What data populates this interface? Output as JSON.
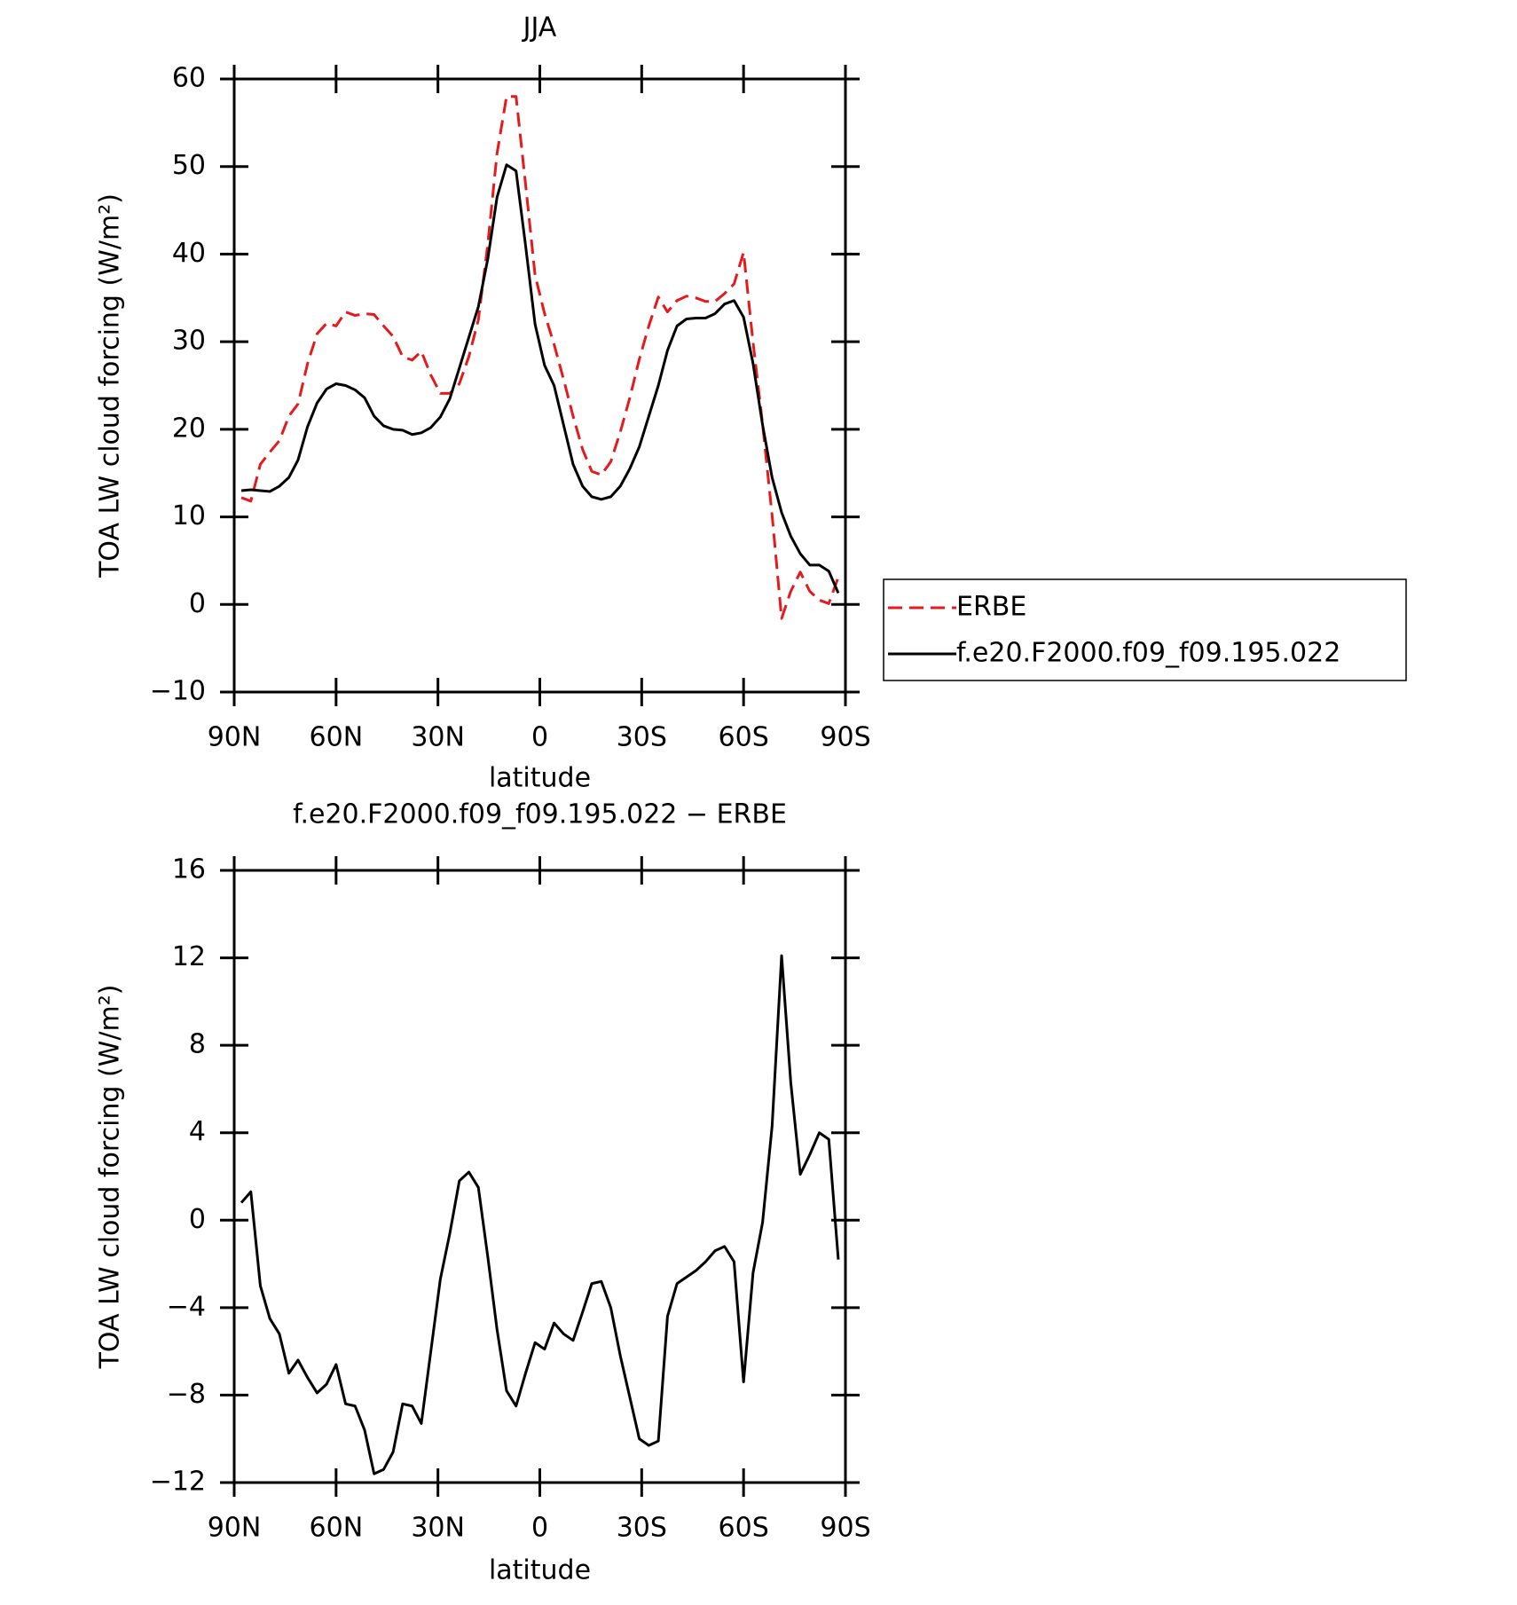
{
  "chart_data": [
    {
      "type": "line",
      "title": "JJA",
      "xlabel": "latitude",
      "ylabel": "TOA LW cloud forcing (W/m²)",
      "xlim": [
        90,
        -90
      ],
      "xticks": [
        {
          "value": 90,
          "label": "90N"
        },
        {
          "value": 60,
          "label": "60N"
        },
        {
          "value": 30,
          "label": "30N"
        },
        0,
        {
          "value": -30,
          "label": "30S"
        },
        {
          "value": -60,
          "label": "60S"
        },
        {
          "value": -90,
          "label": "90S"
        }
      ],
      "ylim": [
        -10,
        60
      ],
      "yticks": [
        {
          "value": -10,
          "label": "−10"
        },
        0,
        10,
        20,
        30,
        40,
        50,
        60
      ],
      "legend": "right",
      "x": [
        87.9,
        85.1,
        82.3,
        79.5,
        76.7,
        73.9,
        71.2,
        68.4,
        65.6,
        62.8,
        60.0,
        57.2,
        54.4,
        51.6,
        48.8,
        46.0,
        43.2,
        40.4,
        37.6,
        34.9,
        32.1,
        29.3,
        26.5,
        23.7,
        20.9,
        18.1,
        15.3,
        12.6,
        9.8,
        7.0,
        4.2,
        1.4,
        -1.4,
        -4.2,
        -7.0,
        -9.8,
        -12.6,
        -15.3,
        -18.1,
        -20.9,
        -23.7,
        -26.5,
        -29.3,
        -32.1,
        -34.9,
        -37.6,
        -40.4,
        -43.2,
        -46.0,
        -48.8,
        -51.6,
        -54.4,
        -57.2,
        -60.0,
        -62.8,
        -65.6,
        -68.4,
        -71.2,
        -73.9,
        -76.7,
        -79.5,
        -82.3,
        -85.1,
        -87.9
      ],
      "series": [
        {
          "name": "ERBE",
          "color": "#e41a1c",
          "linestyle": "dashed",
          "values": [
            12.2,
            11.8,
            16,
            17.4,
            18.7,
            21.5,
            22.9,
            27.5,
            30.9,
            32.1,
            31.8,
            33.4,
            33,
            33.2,
            33.1,
            31.8,
            30.6,
            28.3,
            27.9,
            28.9,
            26.2,
            24.1,
            24.1,
            25.2,
            28.3,
            32.5,
            41.2,
            51.5,
            58,
            58,
            48,
            37.6,
            33.2,
            29.7,
            25.7,
            21.5,
            17.7,
            15.2,
            14.8,
            16.3,
            19.7,
            23.6,
            28,
            31.8,
            35.1,
            33.4,
            34.7,
            35.2,
            35,
            34.6,
            34.6,
            35.5,
            36.6,
            40.2,
            29.9,
            20.6,
            10.2,
            -1.6,
            1.5,
            3.7,
            1.5,
            0.5,
            0.1,
            3.1
          ]
        },
        {
          "name": "f.e20.F2000.f09_f09.195.022",
          "color": "#000000",
          "linestyle": "solid",
          "values": [
            13,
            13.1,
            13,
            12.9,
            13.5,
            14.5,
            16.5,
            20.3,
            23,
            24.6,
            25.2,
            25,
            24.5,
            23.6,
            21.5,
            20.4,
            20,
            19.9,
            19.4,
            19.6,
            20.2,
            21.4,
            23.5,
            27,
            30.5,
            34,
            39.5,
            46.5,
            50.2,
            49.5,
            41,
            32,
            27.3,
            25,
            20.5,
            16,
            13.5,
            12.3,
            12,
            12.3,
            13.5,
            15.5,
            18,
            21.5,
            25,
            29,
            31.8,
            32.6,
            32.7,
            32.7,
            33.2,
            34.3,
            34.7,
            32.8,
            27.5,
            20.5,
            14.5,
            10.5,
            7.8,
            5.8,
            4.5,
            4.5,
            3.8,
            1.3
          ]
        }
      ]
    },
    {
      "type": "line",
      "title": "f.e20.F2000.f09_f09.195.022 − ERBE",
      "xlabel": "latitude",
      "ylabel": "TOA LW cloud forcing (W/m²)",
      "xlim": [
        90,
        -90
      ],
      "xticks": [
        {
          "value": 90,
          "label": "90N"
        },
        {
          "value": 60,
          "label": "60N"
        },
        {
          "value": 30,
          "label": "30N"
        },
        0,
        {
          "value": -30,
          "label": "30S"
        },
        {
          "value": -60,
          "label": "60S"
        },
        {
          "value": -90,
          "label": "90S"
        }
      ],
      "ylim": [
        -12,
        16
      ],
      "yticks": [
        {
          "value": -12,
          "label": "−12"
        },
        {
          "value": -8,
          "label": "−8"
        },
        {
          "value": -4,
          "label": "−4"
        },
        0,
        4,
        8,
        12,
        16
      ],
      "x": [
        87.9,
        85.1,
        82.3,
        79.5,
        76.7,
        73.9,
        71.2,
        68.4,
        65.6,
        62.8,
        60.0,
        57.2,
        54.4,
        51.6,
        48.8,
        46.0,
        43.2,
        40.4,
        37.6,
        34.9,
        32.1,
        29.3,
        26.5,
        23.7,
        20.9,
        18.1,
        15.3,
        12.6,
        9.8,
        7.0,
        4.2,
        1.4,
        -1.4,
        -4.2,
        -7.0,
        -9.8,
        -12.6,
        -15.3,
        -18.1,
        -20.9,
        -23.7,
        -26.5,
        -29.3,
        -32.1,
        -34.9,
        -37.6,
        -40.4,
        -43.2,
        -46.0,
        -48.8,
        -51.6,
        -54.4,
        -57.2,
        -60.0,
        -62.8,
        -65.6,
        -68.4,
        -71.2,
        -73.9,
        -76.7,
        -79.5,
        -82.3,
        -85.1,
        -87.9
      ],
      "series": [
        {
          "color": "#000000",
          "linestyle": "solid",
          "values": [
            0.8,
            1.3,
            -3,
            -4.5,
            -5.2,
            -7,
            -6.4,
            -7.2,
            -7.9,
            -7.5,
            -6.6,
            -8.4,
            -8.5,
            -9.6,
            -11.6,
            -11.4,
            -10.6,
            -8.4,
            -8.5,
            -9.3,
            -6,
            -2.7,
            -0.6,
            1.8,
            2.2,
            1.5,
            -1.7,
            -5,
            -7.8,
            -8.5,
            -7,
            -5.6,
            -5.9,
            -4.7,
            -5.2,
            -5.5,
            -4.2,
            -2.9,
            -2.8,
            -4,
            -6.2,
            -8.1,
            -10,
            -10.3,
            -10.1,
            -4.4,
            -2.9,
            -2.6,
            -2.3,
            -1.9,
            -1.4,
            -1.2,
            -1.9,
            -7.4,
            -2.4,
            -0.1,
            4.3,
            12.1,
            6.3,
            2.1,
            3,
            4,
            3.7,
            -1.8
          ]
        }
      ]
    }
  ]
}
